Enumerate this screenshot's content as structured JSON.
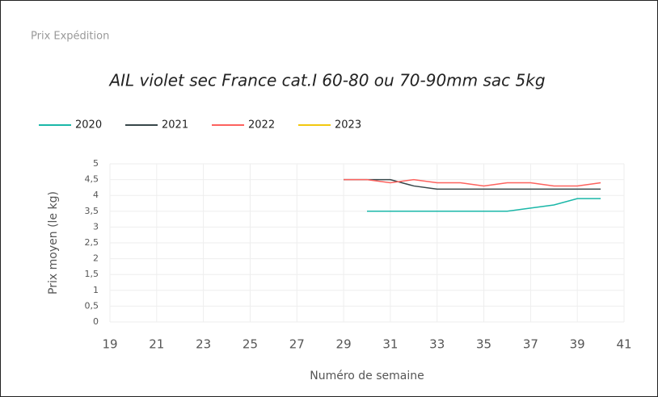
{
  "header": {
    "title": "Prix Expédition"
  },
  "chart_data": {
    "type": "line",
    "title": "AIL violet sec France cat.I 60-80 ou 70-90mm sac 5kg",
    "xlabel": "Numéro de semaine",
    "ylabel": "Prix moyen  (le kg)",
    "x": [
      29,
      30,
      31,
      32,
      33,
      34,
      35,
      36,
      37,
      38,
      39,
      40
    ],
    "series": [
      {
        "name": "2020",
        "color": "#1ab7a8",
        "values": [
          null,
          3.5,
          3.5,
          3.5,
          3.5,
          3.5,
          3.5,
          3.5,
          3.6,
          3.7,
          3.9,
          3.9
        ]
      },
      {
        "name": "2021",
        "color": "#374649",
        "values": [
          4.5,
          4.5,
          4.5,
          4.3,
          4.2,
          4.2,
          4.2,
          4.2,
          4.2,
          4.2,
          4.2,
          4.2
        ]
      },
      {
        "name": "2022",
        "color": "#fd625e",
        "values": [
          4.5,
          4.5,
          4.4,
          4.5,
          4.4,
          4.4,
          4.3,
          4.4,
          4.4,
          4.3,
          4.3,
          4.4
        ]
      },
      {
        "name": "2023",
        "color": "#f2c80f",
        "values": [
          null,
          null,
          null,
          null,
          null,
          null,
          null,
          null,
          null,
          null,
          null,
          null
        ]
      }
    ],
    "xlim": [
      19,
      41
    ],
    "xticks": [
      19,
      21,
      23,
      25,
      27,
      29,
      31,
      33,
      35,
      37,
      39,
      41
    ],
    "ylim": [
      0,
      5
    ],
    "yticks": [
      0,
      {
        "value": 0.5,
        "label": "0,5"
      },
      1,
      {
        "value": 1.5,
        "label": "1,5"
      },
      2,
      {
        "value": 2.5,
        "label": "2,5"
      },
      3,
      {
        "value": 3.5,
        "label": "3,5"
      },
      4,
      {
        "value": 4.5,
        "label": "4,5"
      },
      5
    ],
    "grid": true,
    "legend": "top-left"
  }
}
